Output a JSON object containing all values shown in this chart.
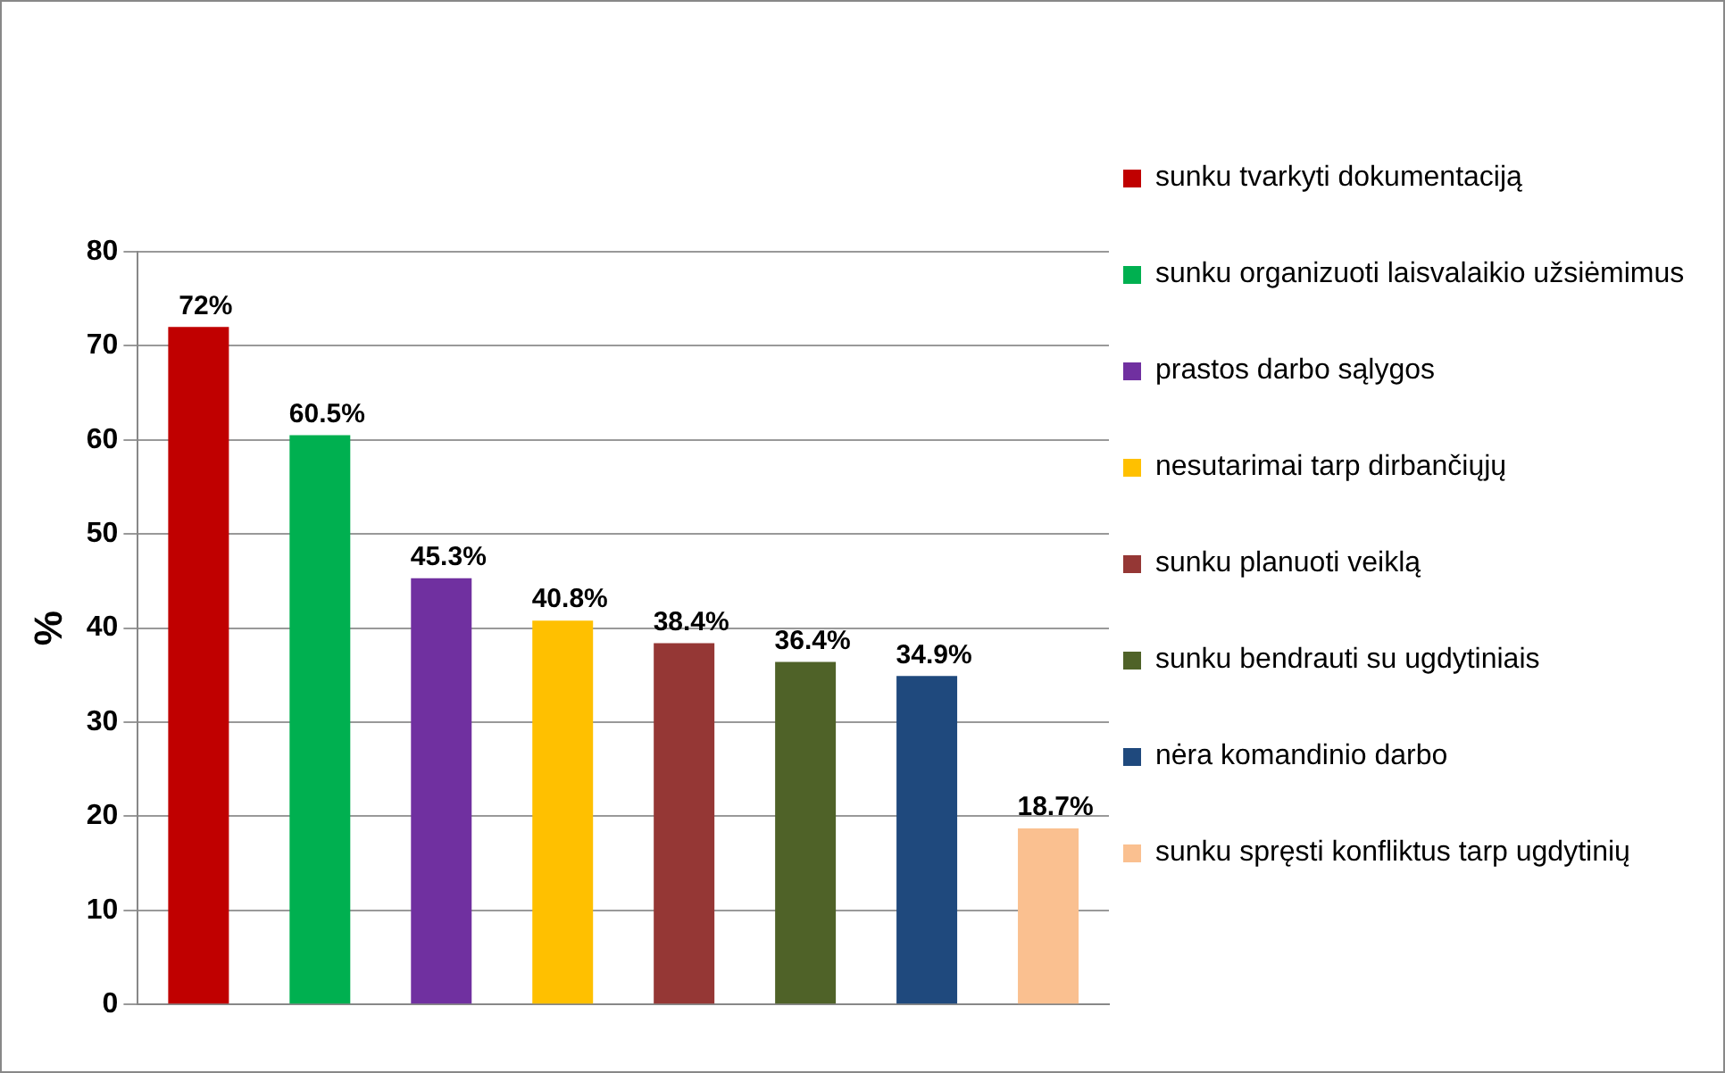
{
  "chart_data": {
    "type": "bar",
    "ylabel": "%",
    "categories": [
      null,
      null,
      null,
      null,
      null,
      null,
      null,
      null
    ],
    "series": [
      {
        "name": "sunku tvarkyti dokumentaciją",
        "color": "#c00000",
        "values": [
          72,
          null,
          null,
          null,
          null,
          null,
          null,
          null
        ],
        "value_labels": [
          "72%",
          null,
          null,
          null,
          null,
          null,
          null,
          null
        ]
      },
      {
        "name": "sunku organizuoti laisvalaikio užsiėmimus",
        "color": "#00b050",
        "values": [
          null,
          60.5,
          null,
          null,
          null,
          null,
          null,
          null
        ],
        "value_labels": [
          null,
          "60.5%",
          null,
          null,
          null,
          null,
          null,
          null
        ]
      },
      {
        "name": "prastos darbo sąlygos",
        "color": "#7030a0",
        "values": [
          null,
          null,
          45.3,
          null,
          null,
          null,
          null,
          null
        ],
        "value_labels": [
          null,
          null,
          "45.3%",
          null,
          null,
          null,
          null,
          null
        ]
      },
      {
        "name": "nesutarimai tarp dirbančiųjų",
        "color": "#ffc000",
        "values": [
          null,
          null,
          null,
          40.8,
          null,
          null,
          null,
          null
        ],
        "value_labels": [
          null,
          null,
          null,
          "40.8%",
          null,
          null,
          null,
          null
        ]
      },
      {
        "name": "sunku planuoti veiklą",
        "color": "#953735",
        "values": [
          null,
          null,
          null,
          null,
          38.4,
          null,
          null,
          null
        ],
        "value_labels": [
          null,
          null,
          null,
          null,
          "38.4%",
          null,
          null,
          null
        ]
      },
      {
        "name": "sunku bendrauti su ugdytiniais",
        "color": "#4f6228",
        "values": [
          null,
          null,
          null,
          null,
          null,
          36.4,
          null,
          null
        ],
        "value_labels": [
          null,
          null,
          null,
          null,
          null,
          "36.4%",
          null,
          null
        ]
      },
      {
        "name": "nėra komandinio darbo",
        "color": "#1f497d",
        "values": [
          null,
          null,
          null,
          null,
          null,
          null,
          34.9,
          null
        ],
        "value_labels": [
          null,
          null,
          null,
          null,
          null,
          null,
          "34.9%",
          null
        ]
      },
      {
        "name": "sunku spręsti konfliktus tarp ugdytinių",
        "color": "#fac090",
        "values": [
          null,
          null,
          null,
          null,
          null,
          null,
          null,
          18.7
        ],
        "value_labels": [
          null,
          null,
          null,
          null,
          null,
          null,
          null,
          "18.7%"
        ]
      }
    ],
    "ylim": [
      0,
      80
    ],
    "yticks": [
      0,
      10,
      20,
      30,
      40,
      50,
      60,
      70,
      80
    ],
    "grid": "y",
    "legend": "right"
  }
}
